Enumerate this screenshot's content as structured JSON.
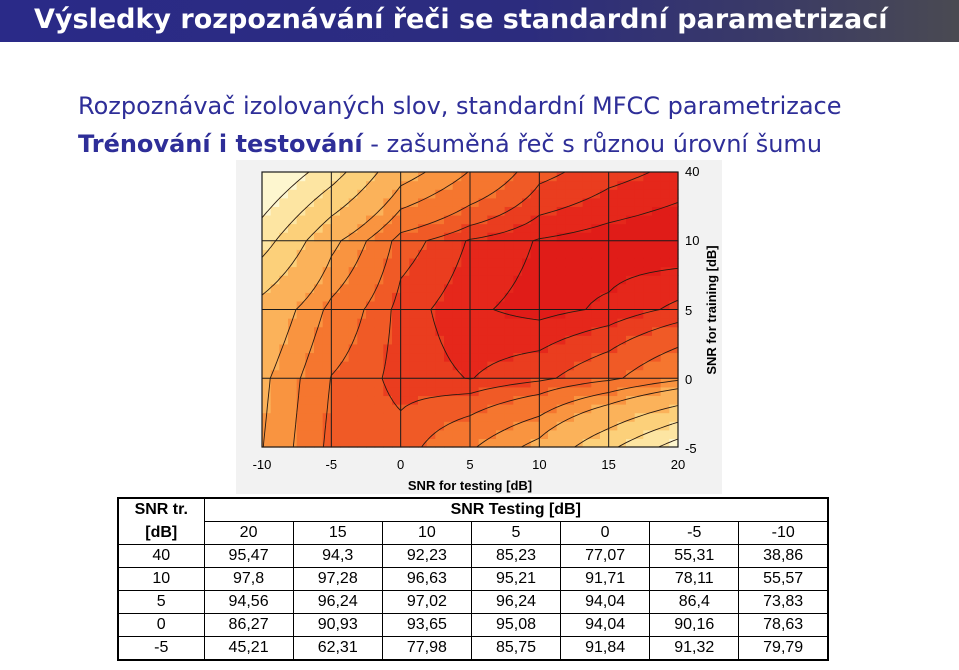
{
  "slide": {
    "title": "Výsledky rozpoznávání řeči se standardní parametrizací",
    "subtitle_line1": "Rozpoznávač izolovaných slov, standardní MFCC parametrizace",
    "subtitle_line2_bold": "Trénování i testování",
    "subtitle_line2_rest": " - zašuměná řeč s různou úrovní šumu"
  },
  "chart_data": {
    "type": "heatmap",
    "xlabel": "SNR for testing [dB]",
    "ylabel": "SNR for training [dB]",
    "x_ticks": [
      "-10",
      "-5",
      "0",
      "5",
      "10",
      "15",
      "20"
    ],
    "y_ticks": [
      "40",
      "10",
      "5",
      "0",
      "-5"
    ],
    "x": [
      -10,
      -5,
      0,
      5,
      10,
      15,
      20
    ],
    "y": [
      -5,
      0,
      5,
      10,
      40
    ],
    "z": [
      [
        79.79,
        91.32,
        91.84,
        85.75,
        77.98,
        62.31,
        45.21
      ],
      [
        78.63,
        90.16,
        94.04,
        95.08,
        93.65,
        90.93,
        86.27
      ],
      [
        73.83,
        86.4,
        94.04,
        96.24,
        97.02,
        96.24,
        94.56
      ],
      [
        55.57,
        78.11,
        91.71,
        95.21,
        96.63,
        97.28,
        97.8
      ],
      [
        38.86,
        55.31,
        77.07,
        85.23,
        92.23,
        94.3,
        95.47
      ]
    ],
    "color_levels": [
      50,
      60,
      70,
      80,
      85,
      90,
      93,
      95,
      96.5
    ],
    "colors": [
      "#fdf6cf",
      "#fde5a2",
      "#fcd07a",
      "#fbb25a",
      "#f99440",
      "#f5762f",
      "#f05a26",
      "#ea3d1f",
      "#e5271b",
      "#e01c18"
    ],
    "grid": true
  },
  "table": {
    "corner_top": "SNR tr.",
    "corner_bottom": "[dB]",
    "header": "SNR Testing [dB]",
    "columns": [
      "20",
      "15",
      "10",
      "5",
      "0",
      "-5",
      "-10"
    ],
    "rows": [
      {
        "snr": "40",
        "values": [
          "95,47",
          "94,3",
          "92,23",
          "85,23",
          "77,07",
          "55,31",
          "38,86"
        ]
      },
      {
        "snr": "10",
        "values": [
          "97,8",
          "97,28",
          "96,63",
          "95,21",
          "91,71",
          "78,11",
          "55,57"
        ]
      },
      {
        "snr": "5",
        "values": [
          "94,56",
          "96,24",
          "97,02",
          "96,24",
          "94,04",
          "86,4",
          "73,83"
        ]
      },
      {
        "snr": "0",
        "values": [
          "86,27",
          "90,93",
          "93,65",
          "95,08",
          "94,04",
          "90,16",
          "78,63"
        ]
      },
      {
        "snr": "-5",
        "values": [
          "45,21",
          "62,31",
          "77,98",
          "85,75",
          "91,84",
          "91,32",
          "79,79"
        ]
      }
    ]
  }
}
